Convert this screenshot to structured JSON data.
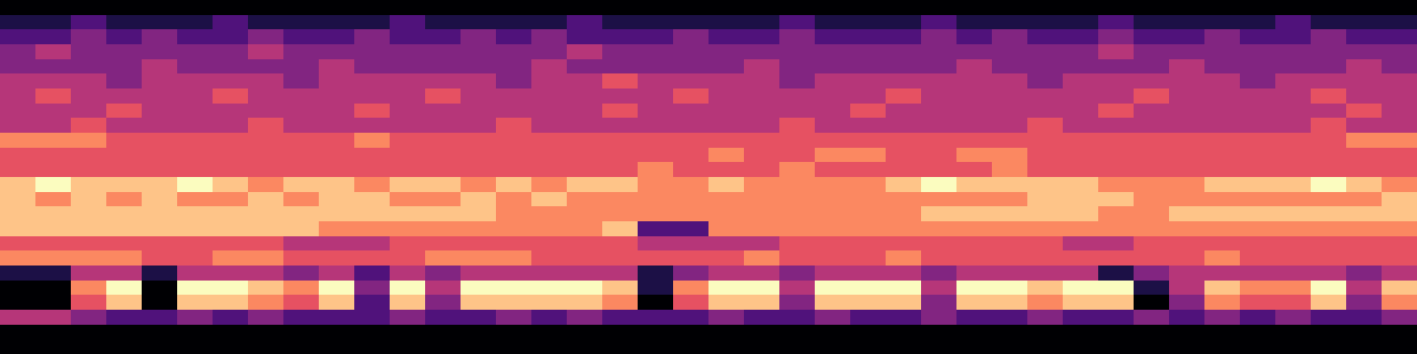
{
  "chart_data": {
    "type": "heatmap",
    "color": "magma",
    "tick_labels": false,
    "cells": [
      [
        0,
        0,
        0,
        0,
        0,
        0,
        0,
        0,
        0,
        0,
        0,
        0,
        0,
        0,
        0,
        0,
        0,
        0,
        0,
        0,
        0,
        0,
        0,
        0,
        0,
        0,
        0,
        0,
        0,
        0,
        0,
        0,
        0,
        0,
        0,
        0,
        0,
        0,
        0,
        0
      ],
      [
        1,
        1,
        2,
        1,
        1,
        1,
        2,
        1,
        1,
        1,
        1,
        2,
        1,
        1,
        1,
        1,
        2,
        1,
        1,
        1,
        1,
        1,
        2,
        1,
        1,
        1,
        2,
        1,
        1,
        1,
        1,
        2,
        1,
        1,
        1,
        1,
        2,
        1,
        1,
        1
      ],
      [
        2,
        2,
        3,
        2,
        3,
        2,
        2,
        3,
        2,
        2,
        3,
        2,
        2,
        3,
        2,
        3,
        2,
        2,
        2,
        3,
        2,
        2,
        3,
        2,
        2,
        2,
        3,
        2,
        3,
        2,
        2,
        3,
        2,
        2,
        3,
        2,
        2,
        3,
        2,
        2
      ],
      [
        3,
        4,
        3,
        3,
        3,
        3,
        3,
        4,
        3,
        3,
        3,
        3,
        3,
        3,
        3,
        3,
        4,
        3,
        3,
        3,
        3,
        3,
        3,
        3,
        3,
        3,
        3,
        3,
        3,
        3,
        3,
        4,
        3,
        3,
        3,
        3,
        3,
        3,
        3,
        3
      ],
      [
        3,
        3,
        3,
        3,
        4,
        3,
        3,
        3,
        3,
        4,
        3,
        3,
        3,
        3,
        3,
        4,
        3,
        3,
        3,
        3,
        3,
        4,
        3,
        3,
        3,
        3,
        3,
        4,
        3,
        3,
        3,
        3,
        3,
        4,
        3,
        3,
        3,
        3,
        4,
        3
      ],
      [
        4,
        4,
        4,
        3,
        4,
        4,
        4,
        4,
        3,
        4,
        4,
        4,
        4,
        4,
        3,
        4,
        4,
        5,
        4,
        4,
        4,
        4,
        3,
        4,
        4,
        4,
        4,
        4,
        4,
        3,
        4,
        4,
        4,
        4,
        4,
        3,
        4,
        4,
        4,
        4
      ],
      [
        4,
        5,
        4,
        4,
        4,
        4,
        5,
        4,
        4,
        4,
        4,
        4,
        5,
        4,
        4,
        4,
        4,
        4,
        4,
        5,
        4,
        4,
        4,
        4,
        4,
        5,
        4,
        4,
        4,
        4,
        4,
        4,
        5,
        4,
        4,
        4,
        4,
        5,
        4,
        4
      ],
      [
        4,
        4,
        4,
        5,
        4,
        4,
        4,
        4,
        4,
        4,
        5,
        4,
        4,
        4,
        4,
        4,
        4,
        5,
        4,
        4,
        4,
        4,
        4,
        4,
        5,
        4,
        4,
        4,
        4,
        4,
        4,
        5,
        4,
        4,
        4,
        4,
        4,
        4,
        5,
        4
      ],
      [
        4,
        4,
        5,
        4,
        4,
        4,
        4,
        5,
        4,
        4,
        4,
        4,
        4,
        4,
        5,
        4,
        4,
        4,
        4,
        4,
        4,
        4,
        5,
        4,
        4,
        4,
        4,
        4,
        4,
        5,
        4,
        4,
        4,
        4,
        4,
        4,
        4,
        5,
        4,
        4
      ],
      [
        6,
        6,
        6,
        5,
        5,
        5,
        5,
        5,
        5,
        5,
        6,
        5,
        5,
        5,
        5,
        5,
        5,
        5,
        5,
        5,
        5,
        5,
        5,
        5,
        5,
        5,
        5,
        5,
        5,
        5,
        5,
        5,
        5,
        5,
        5,
        5,
        5,
        5,
        6,
        6
      ],
      [
        5,
        5,
        5,
        5,
        5,
        5,
        5,
        5,
        5,
        5,
        5,
        5,
        5,
        5,
        5,
        5,
        5,
        5,
        5,
        5,
        6,
        5,
        5,
        6,
        6,
        5,
        5,
        6,
        6,
        5,
        5,
        5,
        5,
        5,
        5,
        5,
        5,
        5,
        5,
        5
      ],
      [
        5,
        5,
        5,
        5,
        5,
        5,
        5,
        5,
        5,
        5,
        5,
        5,
        5,
        5,
        5,
        5,
        5,
        5,
        6,
        5,
        5,
        5,
        6,
        5,
        5,
        5,
        5,
        5,
        6,
        5,
        5,
        5,
        5,
        5,
        5,
        5,
        5,
        5,
        5,
        5
      ],
      [
        7,
        8,
        7,
        7,
        7,
        8,
        7,
        6,
        7,
        7,
        6,
        7,
        7,
        6,
        7,
        6,
        7,
        7,
        6,
        6,
        7,
        6,
        6,
        6,
        6,
        7,
        8,
        7,
        7,
        7,
        7,
        6,
        6,
        6,
        7,
        7,
        7,
        8,
        7,
        6
      ],
      [
        7,
        6,
        7,
        6,
        7,
        6,
        6,
        7,
        6,
        7,
        7,
        6,
        6,
        7,
        6,
        7,
        6,
        6,
        6,
        6,
        6,
        6,
        6,
        6,
        6,
        6,
        6,
        6,
        6,
        7,
        7,
        7,
        6,
        6,
        6,
        6,
        6,
        6,
        6,
        7
      ],
      [
        7,
        7,
        7,
        7,
        7,
        7,
        7,
        7,
        7,
        7,
        7,
        7,
        7,
        7,
        6,
        6,
        6,
        6,
        6,
        6,
        6,
        6,
        6,
        6,
        6,
        6,
        7,
        7,
        7,
        7,
        7,
        6,
        6,
        7,
        7,
        7,
        7,
        7,
        7,
        7
      ],
      [
        7,
        7,
        7,
        7,
        7,
        7,
        7,
        7,
        7,
        6,
        6,
        6,
        6,
        6,
        6,
        6,
        6,
        7,
        2,
        2,
        6,
        6,
        6,
        6,
        6,
        6,
        6,
        6,
        6,
        6,
        6,
        6,
        6,
        6,
        6,
        6,
        6,
        6,
        6,
        6
      ],
      [
        5,
        5,
        5,
        5,
        5,
        5,
        5,
        5,
        4,
        4,
        4,
        5,
        5,
        5,
        5,
        5,
        5,
        5,
        4,
        4,
        4,
        4,
        5,
        5,
        5,
        5,
        5,
        5,
        5,
        5,
        4,
        4,
        5,
        5,
        5,
        5,
        5,
        5,
        5,
        5
      ],
      [
        6,
        6,
        6,
        6,
        5,
        5,
        6,
        6,
        5,
        5,
        5,
        5,
        6,
        6,
        6,
        5,
        5,
        5,
        5,
        5,
        5,
        6,
        5,
        5,
        5,
        6,
        5,
        5,
        5,
        5,
        5,
        5,
        5,
        5,
        6,
        5,
        5,
        5,
        5,
        5
      ],
      [
        1,
        1,
        4,
        4,
        1,
        4,
        4,
        4,
        3,
        4,
        2,
        4,
        3,
        4,
        4,
        4,
        4,
        4,
        1,
        3,
        4,
        4,
        3,
        4,
        4,
        4,
        3,
        4,
        4,
        4,
        4,
        1,
        3,
        4,
        4,
        4,
        4,
        4,
        3,
        4
      ],
      [
        0,
        0,
        6,
        8,
        0,
        8,
        8,
        7,
        6,
        8,
        3,
        8,
        4,
        8,
        8,
        8,
        8,
        7,
        1,
        6,
        8,
        8,
        4,
        8,
        8,
        8,
        4,
        8,
        8,
        7,
        8,
        8,
        1,
        4,
        7,
        6,
        6,
        8,
        4,
        7
      ],
      [
        0,
        0,
        5,
        7,
        0,
        7,
        7,
        6,
        5,
        7,
        2,
        7,
        3,
        7,
        7,
        7,
        7,
        6,
        0,
        5,
        7,
        7,
        3,
        7,
        7,
        7,
        3,
        7,
        7,
        6,
        7,
        7,
        0,
        3,
        6,
        5,
        5,
        7,
        3,
        6
      ],
      [
        4,
        4,
        3,
        2,
        2,
        3,
        2,
        3,
        2,
        2,
        2,
        3,
        2,
        2,
        3,
        2,
        3,
        2,
        2,
        2,
        3,
        2,
        2,
        3,
        2,
        2,
        3,
        2,
        2,
        3,
        2,
        2,
        3,
        2,
        3,
        2,
        3,
        2,
        2,
        3
      ],
      [
        0,
        0,
        0,
        0,
        0,
        0,
        0,
        0,
        0,
        0,
        0,
        0,
        0,
        0,
        0,
        0,
        0,
        0,
        0,
        0,
        0,
        0,
        0,
        0,
        0,
        0,
        0,
        0,
        0,
        0,
        0,
        0,
        0,
        0,
        0,
        0,
        0,
        0,
        0,
        0
      ],
      [
        0,
        0,
        0,
        0,
        0,
        0,
        0,
        0,
        0,
        0,
        0,
        0,
        0,
        0,
        0,
        0,
        0,
        0,
        0,
        0,
        0,
        0,
        0,
        0,
        0,
        0,
        0,
        0,
        0,
        0,
        0,
        0,
        0,
        0,
        0,
        0,
        0,
        0,
        0,
        0
      ]
    ]
  }
}
